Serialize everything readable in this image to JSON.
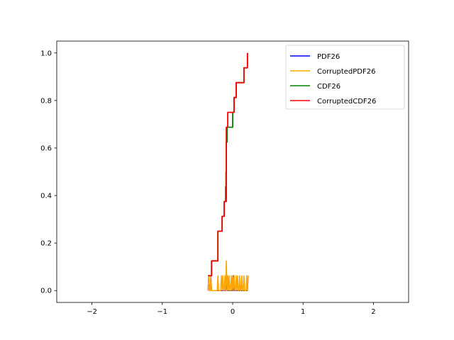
{
  "chart_data": {
    "type": "line",
    "title": "",
    "xlabel": "",
    "ylabel": "",
    "xlim": [
      -2.5,
      2.5
    ],
    "ylim": [
      -0.05,
      1.05
    ],
    "xticks": [
      -2,
      -1,
      0,
      1,
      2
    ],
    "xtick_labels": [
      "−2",
      "−1",
      "0",
      "1",
      "2"
    ],
    "yticks": [
      0.0,
      0.2,
      0.4,
      0.6,
      0.8,
      1.0
    ],
    "ytick_labels": [
      "0.0",
      "0.2",
      "0.4",
      "0.6",
      "0.8",
      "1.0"
    ],
    "grid": false,
    "legend_position": "top-right",
    "series": [
      {
        "name": "PDF26",
        "color": "#0000ff",
        "x": [
          -0.35,
          -0.34,
          -0.33,
          -0.32,
          -0.31,
          -0.3,
          -0.1,
          -0.09,
          -0.08,
          0.0,
          0.01,
          0.02,
          0.21,
          0.22
        ],
        "y": [
          0.0,
          0.0625,
          0.0,
          0.0,
          0.0625,
          0.0,
          0.0,
          0.0625,
          0.0,
          0.0,
          0.0625,
          0.0,
          0.0,
          0.0625
        ]
      },
      {
        "name": "CorruptedPDF26",
        "color": "#ffa500",
        "x": [
          -0.35,
          -0.34,
          -0.33,
          -0.32,
          -0.31,
          -0.3,
          -0.22,
          -0.21,
          -0.2,
          -0.17,
          -0.16,
          -0.15,
          -0.14,
          -0.13,
          -0.12,
          -0.11,
          -0.1,
          -0.09,
          -0.08,
          -0.07,
          -0.06,
          -0.05,
          -0.04,
          -0.03,
          -0.02,
          -0.01,
          0.0,
          0.01,
          0.02,
          0.03,
          0.04,
          0.05,
          0.06,
          0.07,
          0.08,
          0.09,
          0.1,
          0.11,
          0.12,
          0.13,
          0.14,
          0.15,
          0.16,
          0.17,
          0.18,
          0.19,
          0.2,
          0.21,
          0.22
        ],
        "y": [
          0.0,
          0.0625,
          0.0,
          0.0,
          0.0625,
          0.0,
          0.0,
          0.0625,
          0.0,
          0.0,
          0.0625,
          0.0,
          0.0625,
          0.0,
          0.0,
          0.0625,
          0.0,
          0.125,
          0.0,
          0.0625,
          0.0,
          0.0625,
          0.0,
          0.0,
          0.0625,
          0.0,
          0.0625,
          0.0,
          0.0625,
          0.0,
          0.0,
          0.0625,
          0.0,
          0.0625,
          0.0,
          0.0,
          0.0625,
          0.0,
          0.0,
          0.0625,
          0.0,
          0.0,
          0.0625,
          0.0,
          0.0,
          0.0,
          0.0625,
          0.0,
          0.0625
        ]
      },
      {
        "name": "CDF26",
        "color": "#008000",
        "x": [
          -0.35,
          -0.34,
          -0.34,
          -0.3,
          -0.3,
          -0.21,
          -0.21,
          -0.15,
          -0.15,
          -0.12,
          -0.12,
          -0.1,
          -0.1,
          -0.095,
          -0.095,
          -0.09,
          -0.09,
          -0.08,
          -0.08,
          -0.01,
          -0.01,
          0.0,
          0.0,
          0.02,
          0.02,
          0.05,
          0.05,
          0.16,
          0.16,
          0.21,
          0.21
        ],
        "y": [
          0.0625,
          0.0625,
          0.0625,
          0.0625,
          0.125,
          0.125,
          0.25,
          0.25,
          0.3125,
          0.3125,
          0.375,
          0.375,
          0.4375,
          0.4375,
          0.5,
          0.5,
          0.625,
          0.625,
          0.6875,
          0.6875,
          0.6875,
          0.6875,
          0.75,
          0.75,
          0.8125,
          0.8125,
          0.875,
          0.875,
          0.9375,
          0.9375,
          1.0
        ]
      },
      {
        "name": "CorruptedCDF26",
        "color": "#ff0000",
        "x": [
          -0.35,
          -0.32,
          -0.32,
          -0.3,
          -0.3,
          -0.21,
          -0.21,
          -0.15,
          -0.15,
          -0.12,
          -0.12,
          -0.09,
          -0.09,
          -0.07,
          -0.07,
          -0.01,
          -0.01,
          0.02,
          0.02,
          0.05,
          0.05,
          0.16,
          0.16,
          0.21,
          0.21
        ],
        "y": [
          0.0625,
          0.0625,
          0.0625,
          0.0625,
          0.125,
          0.125,
          0.25,
          0.25,
          0.3125,
          0.3125,
          0.375,
          0.375,
          0.6875,
          0.6875,
          0.75,
          0.75,
          0.75,
          0.75,
          0.8125,
          0.8125,
          0.875,
          0.875,
          0.9375,
          0.9375,
          1.0
        ]
      }
    ]
  }
}
